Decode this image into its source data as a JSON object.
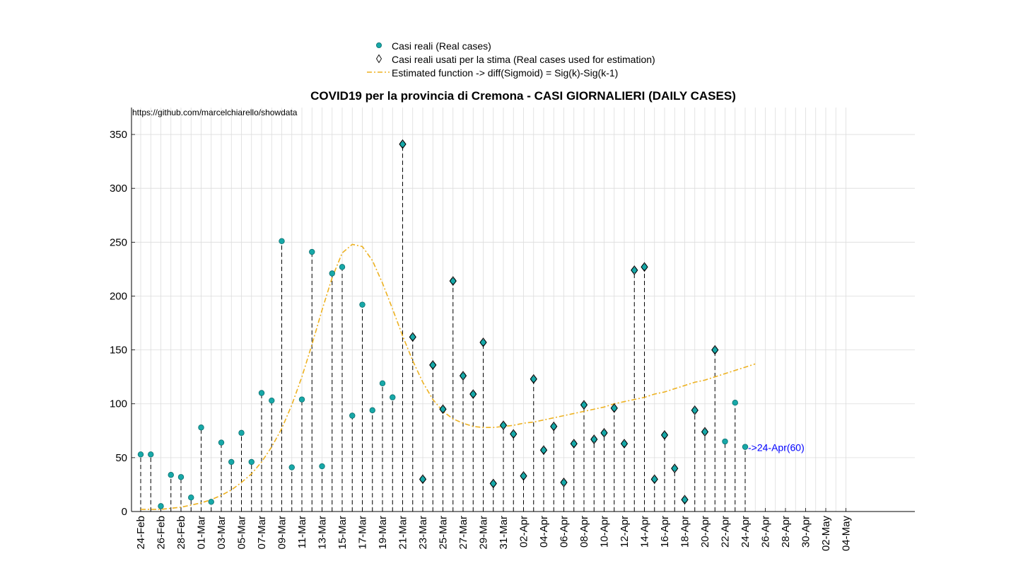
{
  "chart_data": {
    "type": "line",
    "title": "COVID19 per la provincia di Cremona - CASI GIORNALIERI (DAILY CASES)",
    "source_text": "https://github.com/marcelchiarello/showdata",
    "legend": {
      "placement": "top-center",
      "entries": [
        "Casi reali (Real cases)",
        "Casi reali usati per la stima (Real cases used for estimation)",
        "Estimated function -> diff(Sigmoid) = Sig(k)-Sig(k-1)"
      ]
    },
    "ylim": [
      0,
      375
    ],
    "yticks": [
      0,
      50,
      100,
      150,
      200,
      250,
      300,
      350
    ],
    "grid": true,
    "x_tick_labels": [
      "24-Feb",
      "26-Feb",
      "28-Feb",
      "01-Mar",
      "03-Mar",
      "05-Mar",
      "07-Mar",
      "09-Mar",
      "11-Mar",
      "13-Mar",
      "15-Mar",
      "17-Mar",
      "19-Mar",
      "21-Mar",
      "23-Mar",
      "25-Mar",
      "27-Mar",
      "29-Mar",
      "31-Mar",
      "02-Apr",
      "04-Apr",
      "06-Apr",
      "08-Apr",
      "10-Apr",
      "12-Apr",
      "14-Apr",
      "16-Apr",
      "18-Apr",
      "20-Apr",
      "22-Apr",
      "24-Apr",
      "26-Apr",
      "28-Apr",
      "30-Apr",
      "02-May",
      "04-May"
    ],
    "x_dates": [
      "24-Feb",
      "25-Feb",
      "26-Feb",
      "27-Feb",
      "28-Feb",
      "29-Feb",
      "01-Mar",
      "02-Mar",
      "03-Mar",
      "04-Mar",
      "05-Mar",
      "06-Mar",
      "07-Mar",
      "08-Mar",
      "09-Mar",
      "10-Mar",
      "11-Mar",
      "12-Mar",
      "13-Mar",
      "14-Mar",
      "15-Mar",
      "16-Mar",
      "17-Mar",
      "18-Mar",
      "19-Mar",
      "20-Mar",
      "21-Mar",
      "22-Mar",
      "23-Mar",
      "24-Mar",
      "25-Mar",
      "26-Mar",
      "27-Mar",
      "28-Mar",
      "29-Mar",
      "30-Mar",
      "31-Mar",
      "01-Apr",
      "02-Apr",
      "03-Apr",
      "04-Apr",
      "05-Apr",
      "06-Apr",
      "07-Apr",
      "08-Apr",
      "09-Apr",
      "10-Apr",
      "11-Apr",
      "12-Apr",
      "13-Apr",
      "14-Apr",
      "15-Apr",
      "16-Apr",
      "17-Apr",
      "18-Apr",
      "19-Apr",
      "20-Apr",
      "21-Apr",
      "22-Apr",
      "23-Apr",
      "24-Apr",
      "25-Apr",
      "26-Apr",
      "27-Apr",
      "28-Apr",
      "29-Apr",
      "30-Apr",
      "01-May",
      "02-May",
      "03-May",
      "04-May"
    ],
    "series": [
      {
        "name": "Casi reali (Real cases)",
        "marker": "circle",
        "color": "#17a8a8",
        "values": [
          53,
          53,
          5,
          34,
          32,
          13,
          78,
          9,
          64,
          46,
          73,
          46,
          110,
          103,
          251,
          41,
          104,
          241,
          42,
          221,
          227,
          89,
          192,
          94,
          119,
          106,
          341,
          162,
          30,
          136,
          95,
          214,
          126,
          109,
          157,
          26,
          80,
          72,
          33,
          123,
          57,
          79,
          27,
          63,
          99,
          67,
          73,
          96,
          63,
          224,
          227,
          30,
          71,
          40,
          11,
          94,
          74,
          150,
          65,
          101,
          60
        ]
      },
      {
        "name": "Casi reali usati per la stima (Real cases used for estimation)",
        "marker": "diamond",
        "x_start": "21-Mar",
        "x_end": "21-Apr",
        "values": [
          341,
          162,
          30,
          136,
          95,
          214,
          126,
          109,
          157,
          26,
          80,
          72,
          33,
          123,
          57,
          79,
          27,
          63,
          99,
          67,
          73,
          96,
          63,
          224,
          227,
          30,
          71,
          40,
          11,
          94,
          74,
          150
        ]
      },
      {
        "name": "Estimated function -> diff(Sigmoid) = Sig(k)-Sig(k-1)",
        "style": "dash-dot",
        "color": "#edb120",
        "values": [
          2,
          2,
          2,
          3,
          4,
          6,
          8,
          11,
          15,
          20,
          27,
          35,
          46,
          60,
          77,
          99,
          125,
          155,
          187,
          217,
          240,
          248,
          246,
          233,
          212,
          188,
          163,
          140,
          120,
          104,
          93,
          86,
          82,
          79,
          78,
          78,
          79,
          80,
          82,
          83,
          85,
          87,
          89,
          91,
          93,
          95,
          97,
          100,
          102,
          104,
          106,
          109,
          111,
          114,
          117,
          120,
          122,
          125,
          128,
          131,
          134,
          137
        ]
      }
    ],
    "annotation": "->24-Apr(60)"
  }
}
